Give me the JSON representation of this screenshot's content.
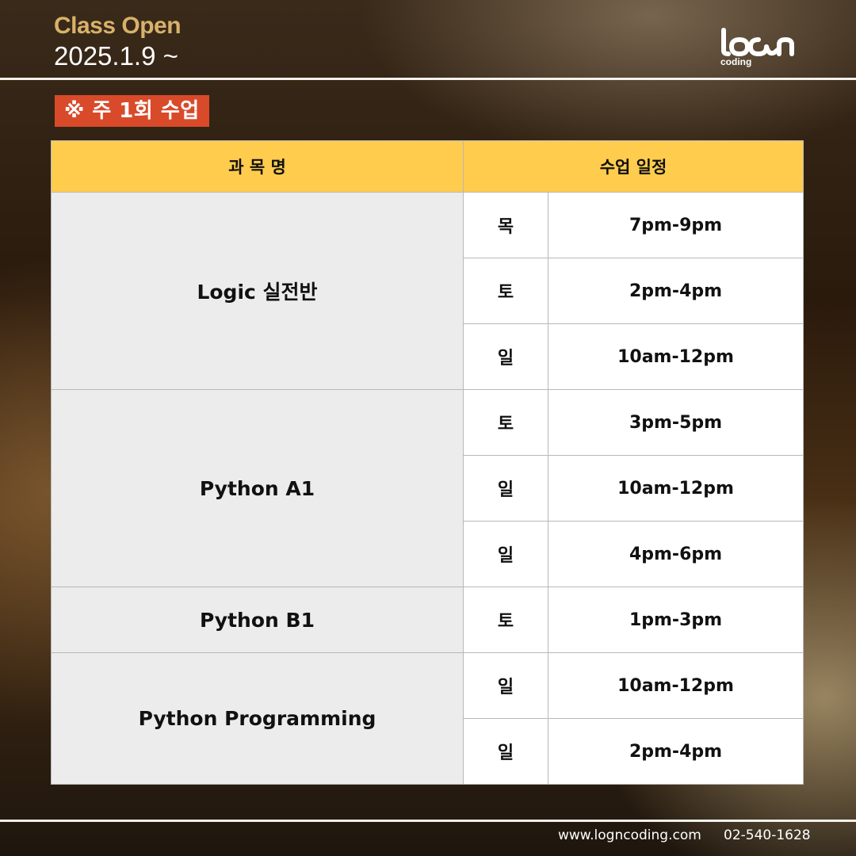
{
  "header": {
    "title": "Class Open",
    "date": "2025.1.9 ~"
  },
  "logo": {
    "wordmark": "loon",
    "subtext": "coding",
    "icon": "logn-coding-logo"
  },
  "badge": {
    "label": "※ 주 1회 수업"
  },
  "table": {
    "headers": {
      "subject": "과 목 명",
      "schedule": "수업 일정"
    },
    "courses": [
      {
        "name": "Logic 실전반",
        "sessions": [
          {
            "day": "목",
            "time": "7pm-9pm"
          },
          {
            "day": "토",
            "time": "2pm-4pm"
          },
          {
            "day": "일",
            "time": "10am-12pm"
          }
        ]
      },
      {
        "name": "Python A1",
        "sessions": [
          {
            "day": "토",
            "time": "3pm-5pm"
          },
          {
            "day": "일",
            "time": "10am-12pm"
          },
          {
            "day": "일",
            "time": "4pm-6pm"
          }
        ]
      },
      {
        "name": "Python B1",
        "sessions": [
          {
            "day": "토",
            "time": "1pm-3pm"
          }
        ]
      },
      {
        "name": "Python Programming",
        "sessions": [
          {
            "day": "일",
            "time": "10am-12pm"
          },
          {
            "day": "일",
            "time": "2pm-4pm"
          }
        ]
      }
    ]
  },
  "footer": {
    "url": "www.logncoding.com",
    "phone": "02-540-1628"
  },
  "colors": {
    "accent_gold": "#d8b26a",
    "badge_red": "#d94a2a",
    "header_yellow": "#ffcc4d",
    "subject_gray": "#ececec"
  }
}
